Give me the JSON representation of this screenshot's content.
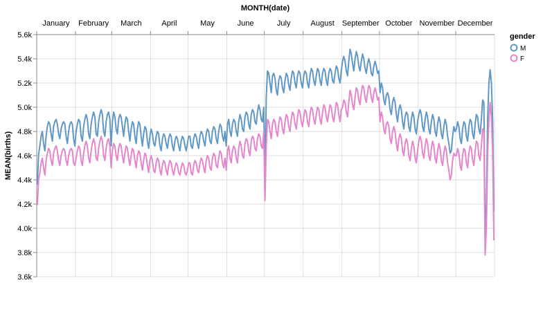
{
  "chart_data": {
    "type": "line",
    "x_title": "MONTH(date)",
    "y_title": "MEAN(births)",
    "x_axis_orient": "top",
    "grid": true,
    "ylim": [
      3600,
      5600
    ],
    "y_ticks": [
      3600,
      3800,
      4000,
      4200,
      4400,
      4600,
      4800,
      5000,
      5200,
      5400,
      5600
    ],
    "y_tick_labels": [
      "3.6k",
      "3.8k",
      "4.0k",
      "4.2k",
      "4.4k",
      "4.6k",
      "4.8k",
      "5.0k",
      "5.2k",
      "5.4k",
      "5.6k"
    ],
    "months": [
      {
        "label": "January",
        "days": 31
      },
      {
        "label": "February",
        "days": 29
      },
      {
        "label": "March",
        "days": 31
      },
      {
        "label": "April",
        "days": 30
      },
      {
        "label": "May",
        "days": 31
      },
      {
        "label": "June",
        "days": 30
      },
      {
        "label": "July",
        "days": 31
      },
      {
        "label": "August",
        "days": 31
      },
      {
        "label": "September",
        "days": 30
      },
      {
        "label": "October",
        "days": 31
      },
      {
        "label": "November",
        "days": 30
      },
      {
        "label": "December",
        "days": 31
      }
    ],
    "legend": {
      "title": "gender",
      "position": "top-right"
    },
    "series": [
      {
        "name": "M",
        "color": "#5f97c6",
        "values": [
          [
            4360,
            4610,
            4680,
            4760,
            4800,
            4700,
            4640,
            4760,
            4840,
            4880,
            4860,
            4780,
            4720,
            4840,
            4880,
            4900,
            4860,
            4780,
            4740,
            4820,
            4860,
            4880,
            4860,
            4760,
            4700,
            4800,
            4860,
            4880,
            4860,
            4740,
            4680
          ],
          [
            4800,
            4860,
            4900,
            4880,
            4760,
            4720,
            4840,
            4900,
            4940,
            4900,
            4780,
            4740,
            4860,
            4920,
            4960,
            4920,
            4780,
            4760,
            4880,
            4940,
            4980,
            4940,
            4800,
            4760,
            4880,
            4940,
            4960,
            4900,
            4680
          ],
          [
            4880,
            4960,
            4920,
            4820,
            4780,
            4900,
            4940,
            4920,
            4840,
            4760,
            4860,
            4920,
            4900,
            4800,
            4720,
            4820,
            4880,
            4860,
            4760,
            4700,
            4820,
            4880,
            4860,
            4760,
            4680,
            4780,
            4840,
            4820,
            4720,
            4660,
            4760
          ],
          [
            4820,
            4780,
            4700,
            4680,
            4760,
            4800,
            4780,
            4680,
            4640,
            4740,
            4780,
            4760,
            4700,
            4660,
            4740,
            4780,
            4760,
            4680,
            4640,
            4720,
            4760,
            4740,
            4680,
            4640,
            4720,
            4760,
            4740,
            4680,
            4640,
            4700
          ],
          [
            4760,
            4760,
            4680,
            4660,
            4740,
            4780,
            4760,
            4700,
            4660,
            4760,
            4800,
            4780,
            4720,
            4680,
            4780,
            4820,
            4800,
            4720,
            4700,
            4800,
            4840,
            4820,
            4740,
            4700,
            4800,
            4860,
            4840,
            4760,
            4720,
            4800,
            4680
          ],
          [
            4860,
            4900,
            4800,
            4760,
            4860,
            4900,
            4880,
            4800,
            4760,
            4880,
            4940,
            4900,
            4820,
            4800,
            4920,
            4960,
            4940,
            4860,
            4820,
            4940,
            4980,
            4960,
            4880,
            4860,
            4960,
            5020,
            4980,
            4900,
            4880,
            5000
          ],
          [
            4430,
            5080,
            5300,
            5280,
            5200,
            5120,
            5260,
            5280,
            5240,
            5140,
            5100,
            5220,
            5260,
            5240,
            5160,
            5120,
            5220,
            5280,
            5260,
            5180,
            5140,
            5240,
            5300,
            5280,
            5200,
            5160,
            5260,
            5300,
            5280,
            5200,
            5160
          ],
          [
            5260,
            5300,
            5280,
            5200,
            5160,
            5260,
            5320,
            5300,
            5220,
            5180,
            5260,
            5320,
            5300,
            5220,
            5180,
            5280,
            5320,
            5300,
            5220,
            5180,
            5280,
            5320,
            5300,
            5220,
            5200,
            5280,
            5340,
            5320,
            5240,
            5200,
            5300
          ],
          [
            5380,
            5420,
            5380,
            5300,
            5260,
            5380,
            5480,
            5440,
            5360,
            5300,
            5400,
            5460,
            5420,
            5340,
            5300,
            5380,
            5440,
            5400,
            5320,
            5280,
            5360,
            5400,
            5360,
            5280,
            5260,
            5340,
            5380,
            5340,
            5280,
            5300
          ],
          [
            5120,
            5200,
            5160,
            5060,
            5020,
            5100,
            5120,
            5080,
            4980,
            4940,
            5040,
            5080,
            5040,
            4940,
            4880,
            4980,
            5020,
            4980,
            4880,
            4820,
            4920,
            4960,
            4940,
            4840,
            4800,
            4900,
            4960,
            4920,
            4820,
            4780,
            4880
          ],
          [
            4940,
            4980,
            4940,
            4840,
            4800,
            4900,
            4960,
            4920,
            4820,
            4780,
            4880,
            4940,
            4900,
            4800,
            4760,
            4860,
            4920,
            4880,
            4780,
            4740,
            4840,
            4900,
            4860,
            4760,
            4700,
            4620,
            4640,
            4760,
            4840,
            4800
          ],
          [
            4820,
            4880,
            4840,
            4740,
            4700,
            4820,
            4880,
            4860,
            4760,
            4720,
            4840,
            4900,
            4880,
            4780,
            4740,
            4860,
            4940,
            4920,
            4820,
            4780,
            4900,
            5060,
            5040,
            3920,
            4200,
            4900,
            5200,
            5310,
            5200,
            4900,
            4140
          ]
        ]
      },
      {
        "name": "F",
        "color": "#e386cb",
        "values": [
          [
            4190,
            4400,
            4460,
            4540,
            4580,
            4500,
            4440,
            4560,
            4620,
            4660,
            4640,
            4560,
            4520,
            4620,
            4660,
            4680,
            4640,
            4560,
            4520,
            4600,
            4640,
            4660,
            4640,
            4560,
            4520,
            4600,
            4640,
            4660,
            4640,
            4540,
            4520
          ],
          [
            4580,
            4640,
            4680,
            4660,
            4560,
            4520,
            4620,
            4680,
            4720,
            4680,
            4580,
            4540,
            4640,
            4700,
            4740,
            4700,
            4580,
            4560,
            4660,
            4720,
            4760,
            4720,
            4600,
            4560,
            4660,
            4720,
            4740,
            4680,
            4500
          ],
          [
            4640,
            4700,
            4680,
            4600,
            4560,
            4660,
            4700,
            4680,
            4600,
            4540,
            4620,
            4680,
            4660,
            4580,
            4520,
            4600,
            4660,
            4640,
            4560,
            4500,
            4600,
            4640,
            4620,
            4540,
            4480,
            4560,
            4620,
            4600,
            4520,
            4460,
            4560
          ],
          [
            4600,
            4560,
            4480,
            4460,
            4540,
            4580,
            4560,
            4480,
            4440,
            4520,
            4560,
            4540,
            4480,
            4440,
            4520,
            4560,
            4540,
            4480,
            4440,
            4500,
            4540,
            4520,
            4460,
            4440,
            4500,
            4540,
            4520,
            4460,
            4440,
            4480
          ],
          [
            4540,
            4540,
            4460,
            4440,
            4520,
            4560,
            4540,
            4480,
            4460,
            4540,
            4580,
            4560,
            4500,
            4460,
            4560,
            4600,
            4580,
            4500,
            4480,
            4580,
            4620,
            4600,
            4520,
            4500,
            4580,
            4640,
            4620,
            4540,
            4500,
            4580,
            4480
          ],
          [
            4640,
            4680,
            4580,
            4540,
            4640,
            4680,
            4660,
            4580,
            4540,
            4660,
            4720,
            4680,
            4600,
            4580,
            4700,
            4740,
            4720,
            4640,
            4600,
            4720,
            4760,
            4740,
            4660,
            4640,
            4740,
            4780,
            4760,
            4680,
            4660,
            4800
          ],
          [
            4230,
            4680,
            4900,
            4880,
            4800,
            4740,
            4860,
            4900,
            4880,
            4800,
            4760,
            4860,
            4920,
            4900,
            4820,
            4780,
            4880,
            4940,
            4920,
            4840,
            4800,
            4900,
            4960,
            4940,
            4860,
            4820,
            4920,
            4980,
            4960,
            4880,
            4840
          ],
          [
            4920,
            4980,
            4960,
            4880,
            4840,
            4940,
            5000,
            4980,
            4900,
            4860,
            4940,
            5000,
            4980,
            4900,
            4860,
            4960,
            5020,
            5000,
            4920,
            4880,
            4960,
            5020,
            5000,
            4920,
            4880,
            4960,
            5040,
            5020,
            4940,
            4880,
            4980
          ],
          [
            5000,
            5060,
            5040,
            4960,
            4920,
            5040,
            5140,
            5100,
            5020,
            4980,
            5080,
            5160,
            5140,
            5060,
            5020,
            5120,
            5180,
            5160,
            5080,
            5040,
            5120,
            5180,
            5160,
            5080,
            5040,
            5120,
            5160,
            5120,
            5060,
            5080
          ],
          [
            4880,
            4960,
            4920,
            4820,
            4780,
            4860,
            4880,
            4840,
            4740,
            4700,
            4800,
            4840,
            4800,
            4700,
            4640,
            4740,
            4780,
            4740,
            4640,
            4600,
            4700,
            4740,
            4700,
            4600,
            4560,
            4660,
            4720,
            4680,
            4580,
            4540,
            4640
          ],
          [
            4720,
            4760,
            4720,
            4620,
            4580,
            4680,
            4740,
            4700,
            4600,
            4560,
            4660,
            4720,
            4680,
            4580,
            4540,
            4640,
            4700,
            4660,
            4560,
            4520,
            4620,
            4680,
            4640,
            4540,
            4480,
            4400,
            4440,
            4560,
            4620,
            4600
          ],
          [
            4600,
            4660,
            4620,
            4520,
            4480,
            4600,
            4660,
            4640,
            4540,
            4500,
            4620,
            4680,
            4660,
            4560,
            4520,
            4640,
            4720,
            4700,
            4600,
            4560,
            4680,
            4820,
            4800,
            3780,
            4000,
            4600,
            4900,
            5040,
            4920,
            4620,
            3900
          ]
        ]
      }
    ]
  }
}
